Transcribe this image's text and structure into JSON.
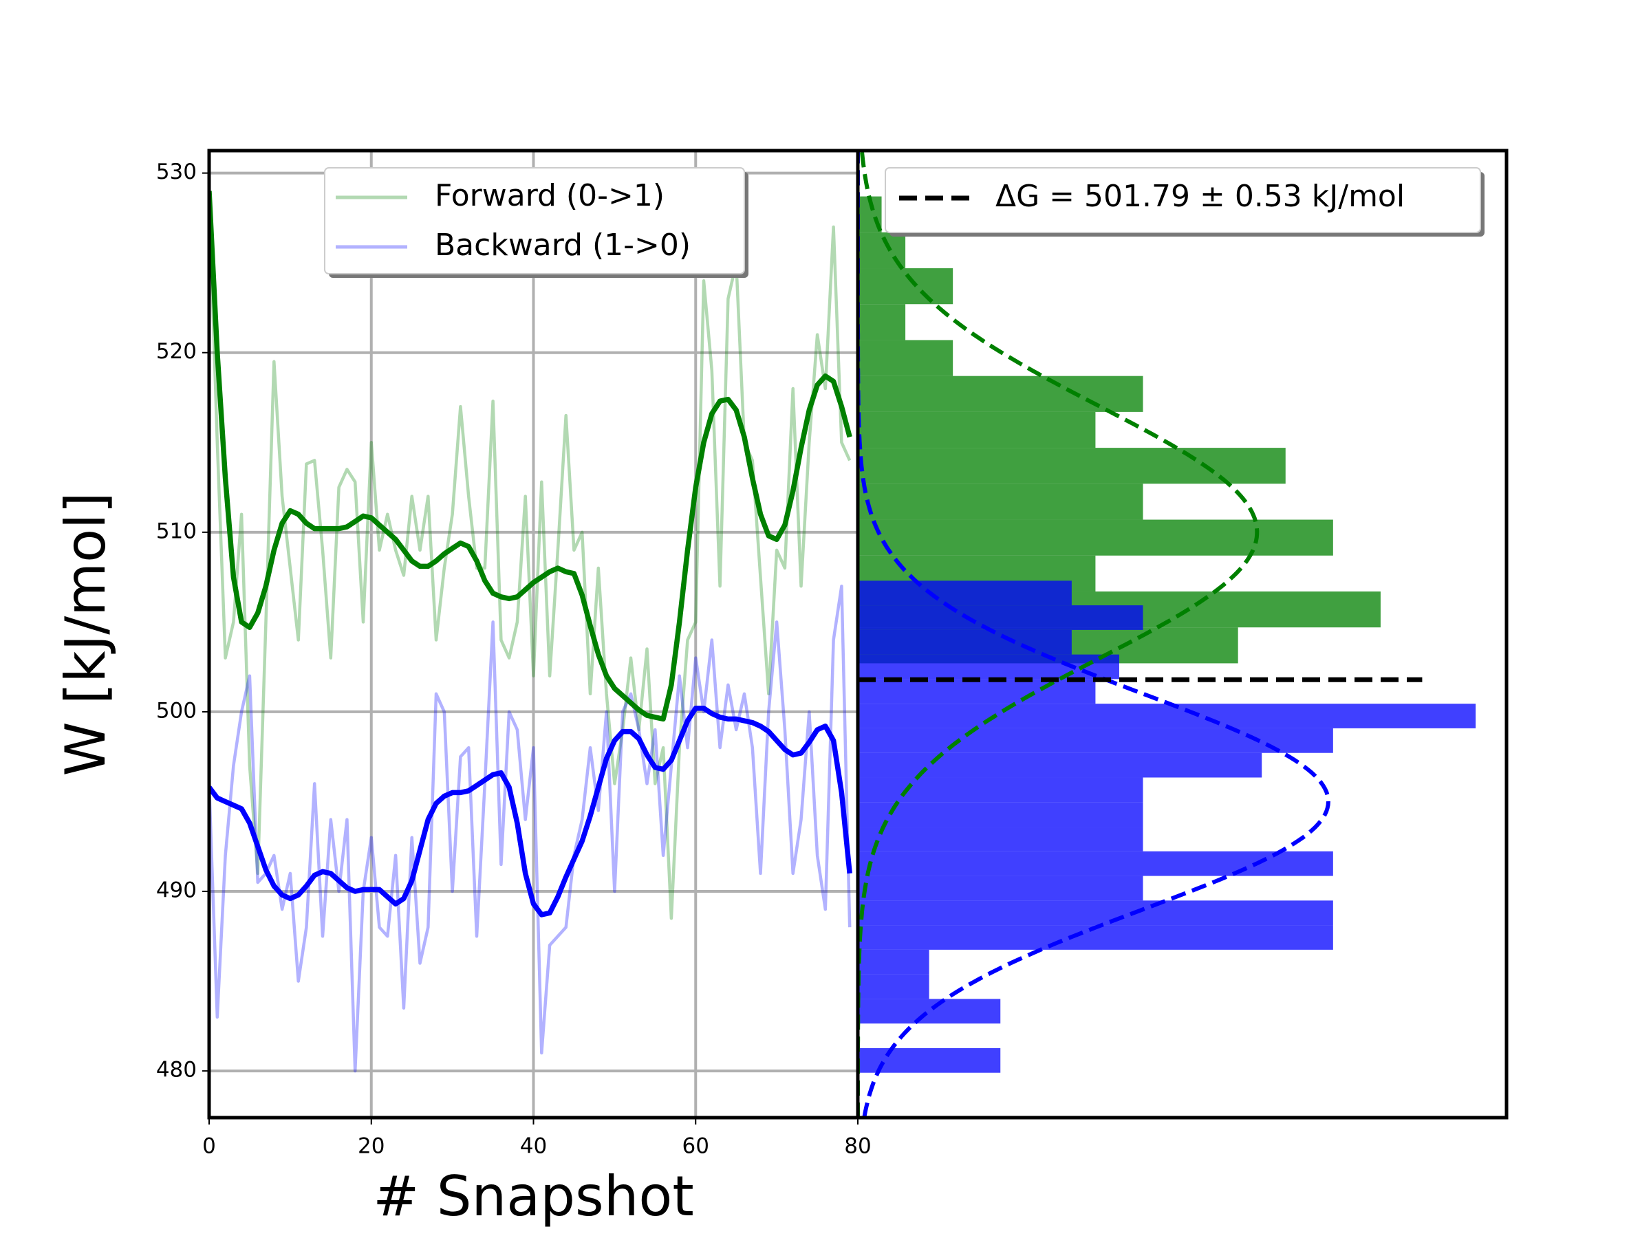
{
  "chart_data": [
    {
      "type": "line",
      "xlabel": "# Snapshot",
      "ylabel": "W [kJ/mol]",
      "xlim": [
        0,
        80
      ],
      "ylim": [
        477.4,
        531.25
      ],
      "xticks": [
        0,
        20,
        40,
        60,
        80
      ],
      "yticks": [
        480,
        490,
        500,
        510,
        520,
        530
      ],
      "grid": true,
      "legend": "upper center",
      "x": [
        0,
        1,
        2,
        3,
        4,
        5,
        6,
        7,
        8,
        9,
        10,
        11,
        12,
        13,
        14,
        15,
        16,
        17,
        18,
        19,
        20,
        21,
        22,
        23,
        24,
        25,
        26,
        27,
        28,
        29,
        30,
        31,
        32,
        33,
        34,
        35,
        36,
        37,
        38,
        39,
        40,
        41,
        42,
        43,
        44,
        45,
        46,
        47,
        48,
        49,
        50,
        51,
        52,
        53,
        54,
        55,
        56,
        57,
        58,
        59,
        60,
        61,
        62,
        63,
        64,
        65,
        66,
        67,
        68,
        69,
        70,
        71,
        72,
        73,
        74,
        75,
        76,
        77,
        78,
        79
      ],
      "series": [
        {
          "name": "Forward (0->1)",
          "color": "#008000",
          "alpha": 0.3,
          "values": [
            529,
            515,
            503,
            505,
            511,
            497,
            491,
            505,
            519.5,
            512,
            508,
            504,
            513.8,
            514,
            509,
            503,
            512.5,
            513.5,
            512.8,
            505,
            515,
            509,
            511,
            509,
            507.6,
            512,
            509,
            512,
            504,
            508,
            511,
            517,
            512,
            508,
            508,
            517.3,
            504,
            503,
            505,
            512,
            502,
            512.8,
            502,
            509,
            516.5,
            509,
            510,
            501,
            508,
            501,
            496,
            499,
            503,
            499,
            503.5,
            496,
            498,
            488.5,
            498,
            504,
            505,
            524,
            519,
            507,
            523,
            525,
            515,
            514,
            507.5,
            501,
            509,
            508,
            518,
            507,
            515,
            521,
            518,
            527,
            515,
            514
          ]
        },
        {
          "name": "Backward (1->0)",
          "color": "#0000ff",
          "alpha": 0.3,
          "values": [
            496,
            483,
            492,
            497,
            500,
            502,
            490.5,
            491,
            492,
            489,
            491,
            485,
            488,
            496,
            487.5,
            494,
            490,
            494,
            480,
            490,
            493,
            488,
            487.5,
            492,
            483.5,
            493,
            486,
            488,
            501,
            500,
            490,
            497.5,
            498,
            487.5,
            496,
            505,
            491.5,
            500,
            499,
            494,
            498,
            481,
            487,
            487.5,
            488,
            492,
            494,
            498,
            494.5,
            500,
            490,
            500,
            501,
            499,
            496,
            499,
            492,
            497,
            502,
            498,
            503,
            500,
            504,
            498,
            501.5,
            499,
            501,
            498,
            491,
            500,
            505,
            499,
            491,
            494,
            500,
            492,
            489,
            504,
            507,
            488
          ]
        },
        {
          "color": "#008000",
          "alpha": 1,
          "values": [
            529,
            520,
            513,
            507.5,
            505,
            504.7,
            505.5,
            507,
            509,
            510.5,
            511.2,
            511,
            510.5,
            510.2,
            510.2,
            510.2,
            510.2,
            510.3,
            510.6,
            510.9,
            510.8,
            510.4,
            510,
            509.6,
            509,
            508.4,
            508.1,
            508.1,
            508.4,
            508.8,
            509.1,
            509.4,
            509.2,
            508.4,
            507.3,
            506.6,
            506.4,
            506.3,
            506.4,
            506.8,
            507.2,
            507.5,
            507.8,
            508,
            507.8,
            507.7,
            506.5,
            504.8,
            503.2,
            502,
            501.3,
            500.9,
            500.5,
            500.1,
            499.8,
            499.7,
            499.6,
            501.5,
            505,
            509,
            512.5,
            515,
            516.6,
            517.3,
            517.4,
            516.8,
            515.3,
            513,
            511,
            509.8,
            509.6,
            510.4,
            512.3,
            514.7,
            516.8,
            518.2,
            518.7,
            518.4,
            517,
            515.3
          ]
        },
        {
          "color": "#0000ff",
          "alpha": 1,
          "values": [
            495.8,
            495.2,
            495,
            494.8,
            494.6,
            493.8,
            492.5,
            491.2,
            490.3,
            489.8,
            489.6,
            489.8,
            490.3,
            490.9,
            491.1,
            491,
            490.6,
            490.2,
            490,
            490.1,
            490.1,
            490.1,
            489.7,
            489.3,
            489.6,
            490.6,
            492.3,
            494,
            494.9,
            495.3,
            495.5,
            495.5,
            495.6,
            495.9,
            496.2,
            496.5,
            496.6,
            495.8,
            493.8,
            491,
            489.3,
            488.7,
            488.8,
            489.7,
            490.8,
            491.8,
            492.8,
            494.2,
            495.8,
            497.4,
            498.4,
            498.9,
            498.9,
            498.5,
            497.6,
            496.9,
            496.8,
            497.3,
            498.4,
            499.5,
            500.2,
            500.2,
            499.9,
            499.7,
            499.6,
            499.6,
            499.5,
            499.4,
            499.2,
            498.9,
            498.4,
            497.9,
            497.6,
            497.7,
            498.3,
            499,
            499.2,
            498.4,
            495.5,
            491
          ]
        }
      ]
    },
    {
      "type": "histogram",
      "orientation": "horizontal",
      "xlim": [
        0,
        27.3
      ],
      "ylim": [
        477.4,
        531.25
      ],
      "legend": "upper right",
      "series": [
        {
          "color": "#008000",
          "alpha": 0.75,
          "bins": [
            502.7,
            504.7,
            506.7,
            508.7,
            510.7,
            512.7,
            514.7,
            516.7,
            518.7,
            520.7,
            522.7,
            524.7,
            526.7,
            528.7
          ],
          "values": [
            16,
            22,
            10,
            20,
            12,
            18,
            10,
            12,
            4,
            2,
            4,
            2,
            1
          ]
        },
        {
          "color": "#0000ff",
          "alpha": 0.75,
          "bins": [
            479.9,
            481.27,
            482.64,
            484.01,
            485.38,
            486.75,
            488.12,
            489.49,
            490.86,
            492.23,
            493.6,
            494.97,
            496.34,
            497.71,
            499.08,
            500.45,
            501.82,
            503.19,
            504.56,
            505.93,
            507.3
          ],
          "values": [
            6,
            0,
            6,
            3,
            3,
            20,
            20,
            12,
            20,
            12,
            12,
            12,
            17,
            20,
            26,
            10,
            11,
            9,
            12,
            9
          ]
        }
      ],
      "curves": [
        {
          "color": "#008000",
          "mean": 510,
          "std": 7,
          "peak": 16.8
        },
        {
          "color": "#0000ff",
          "mean": 495,
          "std": 6,
          "peak": 19.8
        }
      ],
      "hline": {
        "value": 501.79,
        "label": "ΔG = 501.79 ± 0.53 kJ/mol",
        "color": "#000000"
      }
    }
  ]
}
